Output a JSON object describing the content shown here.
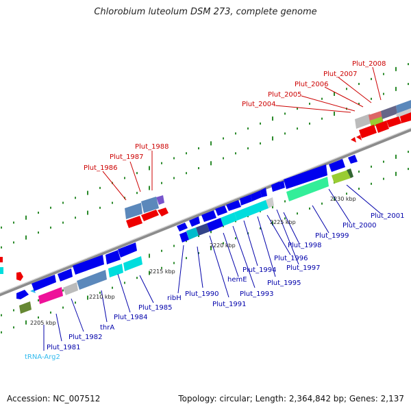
{
  "title": "Chlorobium luteolum DSM 273, complete genome",
  "footer": {
    "accession": "Accession: NC_007512",
    "summary": "Topology: circular; Length: 2,364,842 bp; Genes: 2,137"
  },
  "colors": {
    "forward_label": "#cc0000",
    "reverse_label": "#0000aa",
    "trna_label": "#33bbee",
    "tick": "#2a8a2a"
  },
  "kbp_labels": [
    "2205 kbp",
    "2210 kbp",
    "2215 kbp",
    "2220 kbp",
    "2225 kbp",
    "2230 kbp"
  ],
  "forward_labels": [
    "Plut_1986",
    "Plut_1987",
    "Plut_1988",
    "Plut_2004",
    "Plut_2005",
    "Plut_2006",
    "Plut_2007",
    "Plut_2008"
  ],
  "reverse_labels": [
    "tRNA-Arg2",
    "Plut_1981",
    "Plut_1982",
    "thrA",
    "Plut_1984",
    "Plut_1985",
    "ribH",
    "Plut_1990",
    "Plut_1991",
    "hemE",
    "Plut_1993",
    "Plut_1994",
    "Plut_1995",
    "Plut_1996",
    "Plut_1997",
    "Plut_1998",
    "Plut_1999",
    "Plut_2000",
    "Plut_2001"
  ]
}
